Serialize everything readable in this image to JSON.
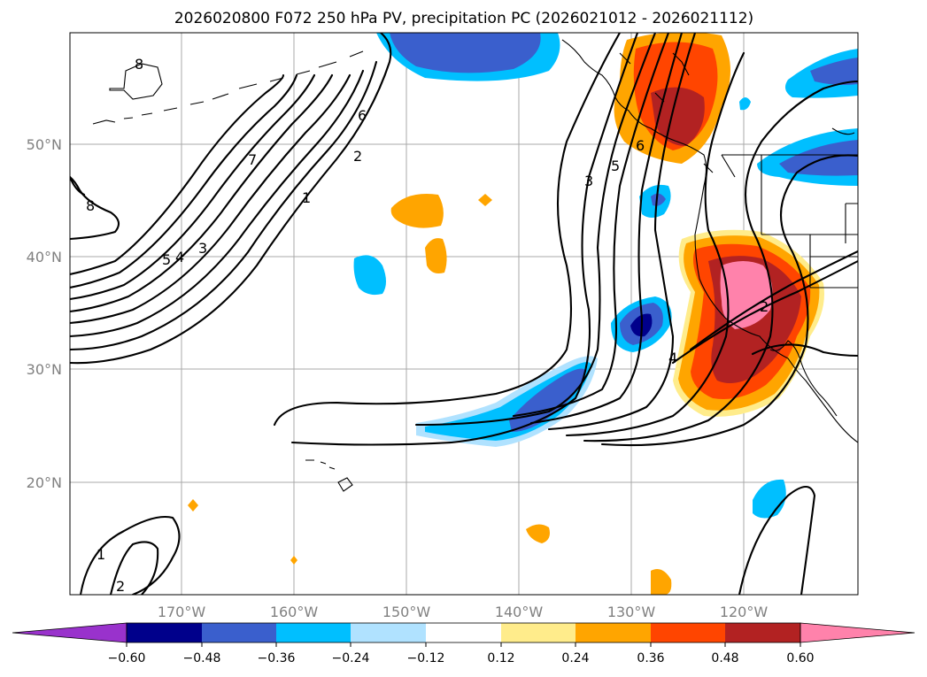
{
  "title": "2026020800 F072 250 hPa PV, precipitation PC (2026021012 - 2026021112)",
  "map": {
    "lon_labels": [
      "170°W",
      "160°W",
      "150°W",
      "140°W",
      "130°W",
      "120°W"
    ],
    "lat_labels": [
      "50°N",
      "40°N",
      "30°N",
      "20°N"
    ],
    "pv_contour_labels": [
      "8",
      "7",
      "6",
      "5",
      "4",
      "3",
      "2",
      "1",
      "6",
      "5",
      "3",
      "8",
      "1",
      "2",
      "2",
      "4"
    ]
  },
  "colorbar": {
    "ticks": [
      "−0.60",
      "−0.48",
      "−0.36",
      "−0.24",
      "−0.12",
      "0.12",
      "0.24",
      "0.36",
      "0.48",
      "0.60"
    ],
    "colors": [
      "#9932cc",
      "#00008b",
      "#3a5fcd",
      "#00bfff",
      "#b0e2ff",
      "#ffffff",
      "#ffec8b",
      "#ffa500",
      "#ff4500",
      "#b22222",
      "#ff82ab"
    ]
  }
}
